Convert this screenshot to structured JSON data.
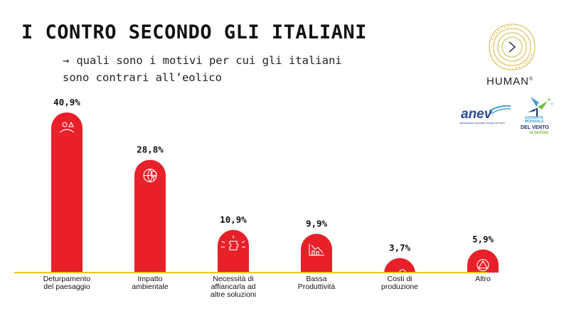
{
  "header": {
    "title": "I CONTRO SECONDO GLI ITALIANI",
    "subtitle_arrow": "→",
    "subtitle_line1": "quali sono i motivi per cui gli italiani",
    "subtitle_line2": "sono contrari all’eolico"
  },
  "logos": {
    "human": "HUMAN",
    "human_mark": "®",
    "anev": "anev",
    "anev_tagline": "associazione nazionale energia del vento",
    "gmv_line1": "GIORNATA",
    "gmv_line2": "MONDIALE",
    "gmv_line3": "DEL VENTO",
    "gmv_line4": "15 GIUGNO"
  },
  "colors": {
    "bar": "#e8202a",
    "baseline": "#f2c400",
    "human_gold": "#d9b84a",
    "anev_blue": "#2a4a9a"
  },
  "chart_data": {
    "type": "bar",
    "categories": [
      [
        "Deturpamento",
        "del paesaggio"
      ],
      [
        "Impatto",
        "ambientale"
      ],
      [
        "Necessità di",
        "affiancarla ad",
        "altre soluzioni"
      ],
      [
        "Bassa",
        "Produttività"
      ],
      [
        "Costi di",
        "produzione"
      ],
      [
        "Altro"
      ]
    ],
    "values": [
      40.9,
      28.8,
      10.9,
      9.9,
      3.7,
      5.9
    ],
    "value_labels": [
      "40,9%",
      "28,8%",
      "10,9%",
      "9,9%",
      "3,7%",
      "5,9%"
    ],
    "icons": [
      "landscape-icon",
      "globe-icon",
      "puzzle-idea-icon",
      "decline-chart-icon",
      "coins-icon",
      "recycle-icon"
    ],
    "ylim": [
      0,
      40.9
    ],
    "grid": false,
    "legend": "none"
  }
}
